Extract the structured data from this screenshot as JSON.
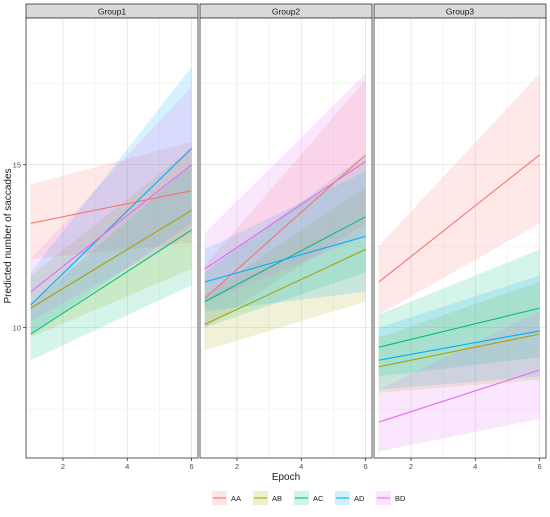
{
  "chart_data": {
    "type": "line",
    "ylabel": "Predicted number of saccades",
    "xlabel": "Epoch",
    "xlim": [
      0.85,
      6.2
    ],
    "ylim": [
      6.0,
      19.5
    ],
    "x_ticks": [
      2,
      4,
      6
    ],
    "y_ticks": [
      10,
      15
    ],
    "grid": true,
    "legend_position": "bottom",
    "legend": [
      "AA",
      "AB",
      "AC",
      "AD",
      "BD"
    ],
    "colors": {
      "AA": "#F8766D",
      "AB": "#A3A500",
      "AC": "#00BF7D",
      "AD": "#00B0F6",
      "BD": "#E76BF3"
    },
    "panels": [
      {
        "title": "Group1",
        "series": [
          {
            "name": "AA",
            "x": [
              1,
              6
            ],
            "y": [
              13.2,
              14.2
            ],
            "lower": [
              12.1,
              12.6
            ],
            "upper": [
              14.4,
              15.7
            ]
          },
          {
            "name": "AB",
            "x": [
              1,
              6
            ],
            "y": [
              10.6,
              13.6
            ],
            "lower": [
              9.7,
              11.8
            ],
            "upper": [
              11.6,
              15.5
            ]
          },
          {
            "name": "AC",
            "x": [
              1,
              6
            ],
            "y": [
              9.8,
              13.0
            ],
            "lower": [
              9.0,
              11.3
            ],
            "upper": [
              10.7,
              15.0
            ]
          },
          {
            "name": "AD",
            "x": [
              1,
              6
            ],
            "y": [
              10.7,
              15.5
            ],
            "lower": [
              9.8,
              13.2
            ],
            "upper": [
              11.7,
              18.0
            ]
          },
          {
            "name": "BD",
            "x": [
              1,
              6
            ],
            "y": [
              11.1,
              15.0
            ],
            "lower": [
              10.2,
              12.9
            ],
            "upper": [
              12.1,
              17.4
            ]
          }
        ]
      },
      {
        "title": "Group2",
        "series": [
          {
            "name": "AA",
            "x": [
              1,
              6
            ],
            "y": [
              10.9,
              15.3
            ],
            "lower": [
              10.0,
              13.2
            ],
            "upper": [
              11.9,
              17.6
            ]
          },
          {
            "name": "AB",
            "x": [
              1,
              6
            ],
            "y": [
              10.1,
              12.4
            ],
            "lower": [
              9.3,
              10.8
            ],
            "upper": [
              11.0,
              14.3
            ]
          },
          {
            "name": "AC",
            "x": [
              1,
              6
            ],
            "y": [
              10.8,
              13.4
            ],
            "lower": [
              10.0,
              11.7
            ],
            "upper": [
              11.7,
              15.3
            ]
          },
          {
            "name": "AD",
            "x": [
              1,
              6
            ],
            "y": [
              11.4,
              12.8
            ],
            "lower": [
              10.5,
              11.1
            ],
            "upper": [
              12.4,
              14.8
            ]
          },
          {
            "name": "BD",
            "x": [
              1,
              6
            ],
            "y": [
              11.8,
              15.1
            ],
            "lower": [
              10.8,
              12.8
            ],
            "upper": [
              12.9,
              17.8
            ]
          }
        ]
      },
      {
        "title": "Group3",
        "series": [
          {
            "name": "AA",
            "x": [
              1,
              6
            ],
            "y": [
              11.4,
              15.3
            ],
            "lower": [
              10.4,
              13.2
            ],
            "upper": [
              12.5,
              17.8
            ]
          },
          {
            "name": "AB",
            "x": [
              1,
              6
            ],
            "y": [
              8.8,
              9.8
            ],
            "lower": [
              8.0,
              8.4
            ],
            "upper": [
              9.7,
              11.4
            ]
          },
          {
            "name": "AC",
            "x": [
              1,
              6
            ],
            "y": [
              9.4,
              10.6
            ],
            "lower": [
              8.5,
              9.1
            ],
            "upper": [
              10.4,
              12.4
            ]
          },
          {
            "name": "AD",
            "x": [
              1,
              6
            ],
            "y": [
              9.0,
              9.9
            ],
            "lower": [
              8.1,
              8.5
            ],
            "upper": [
              10.0,
              11.6
            ]
          },
          {
            "name": "BD",
            "x": [
              1,
              6
            ],
            "y": [
              7.1,
              8.7
            ],
            "lower": [
              6.2,
              7.2
            ],
            "upper": [
              8.1,
              10.5
            ]
          }
        ]
      }
    ]
  }
}
